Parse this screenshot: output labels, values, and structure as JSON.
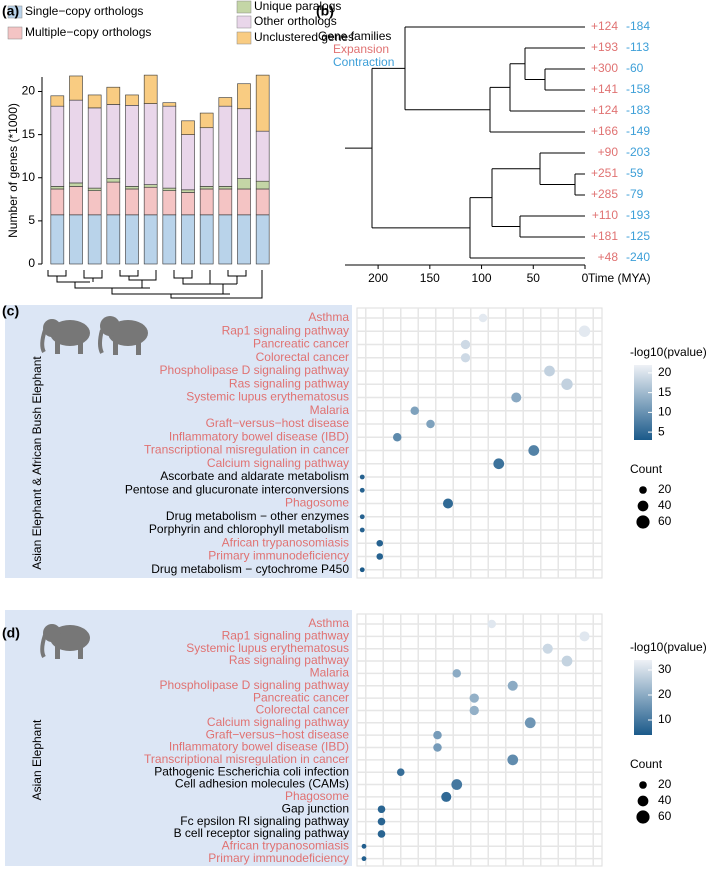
{
  "chart_data": [
    {
      "type": "bar",
      "stacked": true,
      "panel": "(a)",
      "ylabel": "Number of genes (*1000)",
      "categories": [
        null,
        null,
        null,
        null,
        null,
        null,
        null,
        null,
        null,
        null,
        null,
        null
      ],
      "series": [
        {
          "name": "Single−copy orthologs",
          "color": "#b9d3ea",
          "values": [
            5.7,
            5.7,
            5.7,
            5.7,
            5.7,
            5.7,
            5.7,
            5.7,
            5.7,
            5.7,
            5.7,
            5.7
          ]
        },
        {
          "name": "Multiple−copy orthologs",
          "color": "#f4c4c4",
          "values": [
            3.0,
            3.3,
            2.8,
            3.8,
            3.0,
            3.2,
            2.8,
            2.6,
            3.0,
            3.0,
            3.0,
            3.0
          ]
        },
        {
          "name": "Unique paralogs",
          "color": "#c4d6a6",
          "values": [
            0.3,
            0.4,
            0.3,
            0.4,
            0.3,
            0.3,
            0.3,
            0.3,
            0.3,
            0.3,
            1.2,
            0.9
          ]
        },
        {
          "name": "Other orthologs",
          "color": "#e9d6ea",
          "values": [
            9.3,
            9.6,
            9.3,
            8.6,
            9.4,
            9.4,
            9.5,
            6.4,
            6.8,
            9.3,
            8.1,
            5.8
          ]
        },
        {
          "name": "Unclustered genes",
          "color": "#f9cc82",
          "values": [
            1.2,
            2.8,
            1.5,
            2.0,
            1.2,
            3.3,
            0.4,
            1.6,
            1.7,
            1.0,
            2.9,
            6.5
          ]
        }
      ],
      "ylim": [
        0,
        24
      ],
      "yticks": [
        0,
        5,
        10,
        15,
        20
      ]
    },
    {
      "type": "tree",
      "panel": "(b)",
      "title": "Gene families",
      "xlabel": "Time (MYA)",
      "xlim": [
        232,
        0
      ],
      "xticks": [
        200,
        150,
        100,
        50,
        0
      ],
      "series": [
        {
          "name": "Expansion",
          "color": "#e07272",
          "values": [
            124,
            193,
            300,
            141,
            124,
            166,
            90,
            251,
            285,
            110,
            181,
            48
          ],
          "value_labels": [
            "+124",
            "+193",
            "+300",
            "+141",
            "+124",
            "+166",
            "+90",
            "+251",
            "+285",
            "+110",
            "+181",
            "+48"
          ]
        },
        {
          "name": "Contraction",
          "color": "#3d9fd8",
          "values": [
            -184,
            -113,
            -60,
            -158,
            -183,
            -149,
            -203,
            -59,
            -79,
            -193,
            -125,
            -240
          ]
        }
      ]
    },
    {
      "type": "dot",
      "panel": "(c)",
      "ylabel": "Asian Elephant & African Bush Elephant",
      "categories": [
        "Asthma",
        "Rap1 signaling pathway",
        "Pancreatic cancer",
        "Colorectal cancer",
        "Phospholipase D signaling pathway",
        "Ras signaling pathway",
        "Systemic lupus erythematosus",
        "Malaria",
        "Graft−versus−host disease",
        "Inflammatory bowel disease (IBD)",
        "Transcriptional misregulation in cancer",
        "Calcium signaling pathway",
        "Ascorbate and aldarate metabolism",
        "Pentose and glucuronate interconversions",
        "Phagosome",
        "Drug metabolism − other enzymes",
        "Porphyrin and chlorophyll metabolism",
        "African trypanosomiasis",
        "Primary immunodeficiency",
        "Drug metabolism − cytochrome P450"
      ],
      "label_colors": [
        "#e07272",
        "#e07272",
        "#e07272",
        "#e07272",
        "#e07272",
        "#e07272",
        "#e07272",
        "#e07272",
        "#e07272",
        "#e07272",
        "#e07272",
        "#e07272",
        "#000000",
        "#000000",
        "#e07272",
        "#000000",
        "#000000",
        "#e07272",
        "#e07272",
        "#000000"
      ],
      "x": [
        7.2,
        13.0,
        6.2,
        6.2,
        11.0,
        12.0,
        9.1,
        3.3,
        4.2,
        2.3,
        10.1,
        8.1,
        0.3,
        0.3,
        5.2,
        0.3,
        0.3,
        1.3,
        1.3,
        0.3
      ],
      "pvalues": [
        21,
        21,
        19,
        19,
        18,
        18,
        13,
        12,
        12,
        9,
        8,
        6,
        4,
        4,
        5,
        4,
        4,
        4,
        4,
        3
      ],
      "counts": [
        25,
        45,
        30,
        30,
        40,
        45,
        35,
        25,
        25,
        25,
        40,
        40,
        8,
        8,
        35,
        8,
        8,
        15,
        15,
        8
      ],
      "xlim": [
        0,
        14
      ],
      "colorbar": {
        "title": "-log10(pvalue)",
        "lim": [
          3,
          22
        ],
        "ticks": [
          5,
          10,
          15,
          20
        ],
        "colors": [
          "#1b5a8a",
          "#eef1f6"
        ]
      },
      "size_legend": {
        "title": "Count",
        "values": [
          20,
          40,
          60
        ]
      }
    },
    {
      "type": "dot",
      "panel": "(d)",
      "ylabel": "Asian Elephant",
      "categories": [
        "Asthma",
        "Rap1 signaling pathway",
        "Systemic lupus erythematosus",
        "Ras signaling pathway",
        "Malaria",
        "Phospholipase D signaling pathway",
        "Pancreatic cancer",
        "Colorectal cancer",
        "Calcium signaling pathway",
        "Graft−versus−host disease",
        "Inflammatory bowel disease (IBD)",
        "Transcriptional misregulation in cancer",
        "Pathogenic Escherichia coli infection",
        "Cell adhesion molecules (CAMs)",
        "Phagosome",
        "Gap junction",
        "Fc epsilon RI signaling pathway",
        "B cell receptor signaling pathway",
        "African trypanosomiasis",
        "Primary immunodeficiency"
      ],
      "label_colors": [
        "#e07272",
        "#e07272",
        "#e07272",
        "#e07272",
        "#e07272",
        "#e07272",
        "#e07272",
        "#e07272",
        "#e07272",
        "#e07272",
        "#e07272",
        "#e07272",
        "#000000",
        "#000000",
        "#e07272",
        "#000000",
        "#000000",
        "#000000",
        "#e07272",
        "#e07272"
      ],
      "x": [
        7.7,
        13.0,
        10.9,
        12.0,
        5.7,
        8.9,
        6.7,
        6.7,
        9.9,
        4.6,
        4.6,
        8.9,
        2.5,
        5.7,
        5.1,
        1.4,
        1.4,
        1.4,
        0.4,
        0.4
      ],
      "pvalues": [
        32,
        32,
        29,
        28,
        20,
        20,
        21,
        21,
        16,
        17,
        17,
        14,
        8,
        10,
        7,
        6,
        6,
        6,
        5,
        5
      ],
      "counts": [
        25,
        35,
        35,
        40,
        25,
        35,
        30,
        30,
        40,
        25,
        25,
        40,
        20,
        40,
        35,
        20,
        20,
        20,
        8,
        8
      ],
      "xlim": [
        0,
        14
      ],
      "colorbar": {
        "title": "-log10(pvalue)",
        "lim": [
          4,
          34
        ],
        "ticks": [
          10,
          20,
          30
        ],
        "colors": [
          "#1b5a8a",
          "#eef1f6"
        ]
      },
      "size_legend": {
        "title": "Count",
        "values": [
          20,
          40,
          60
        ]
      }
    }
  ]
}
